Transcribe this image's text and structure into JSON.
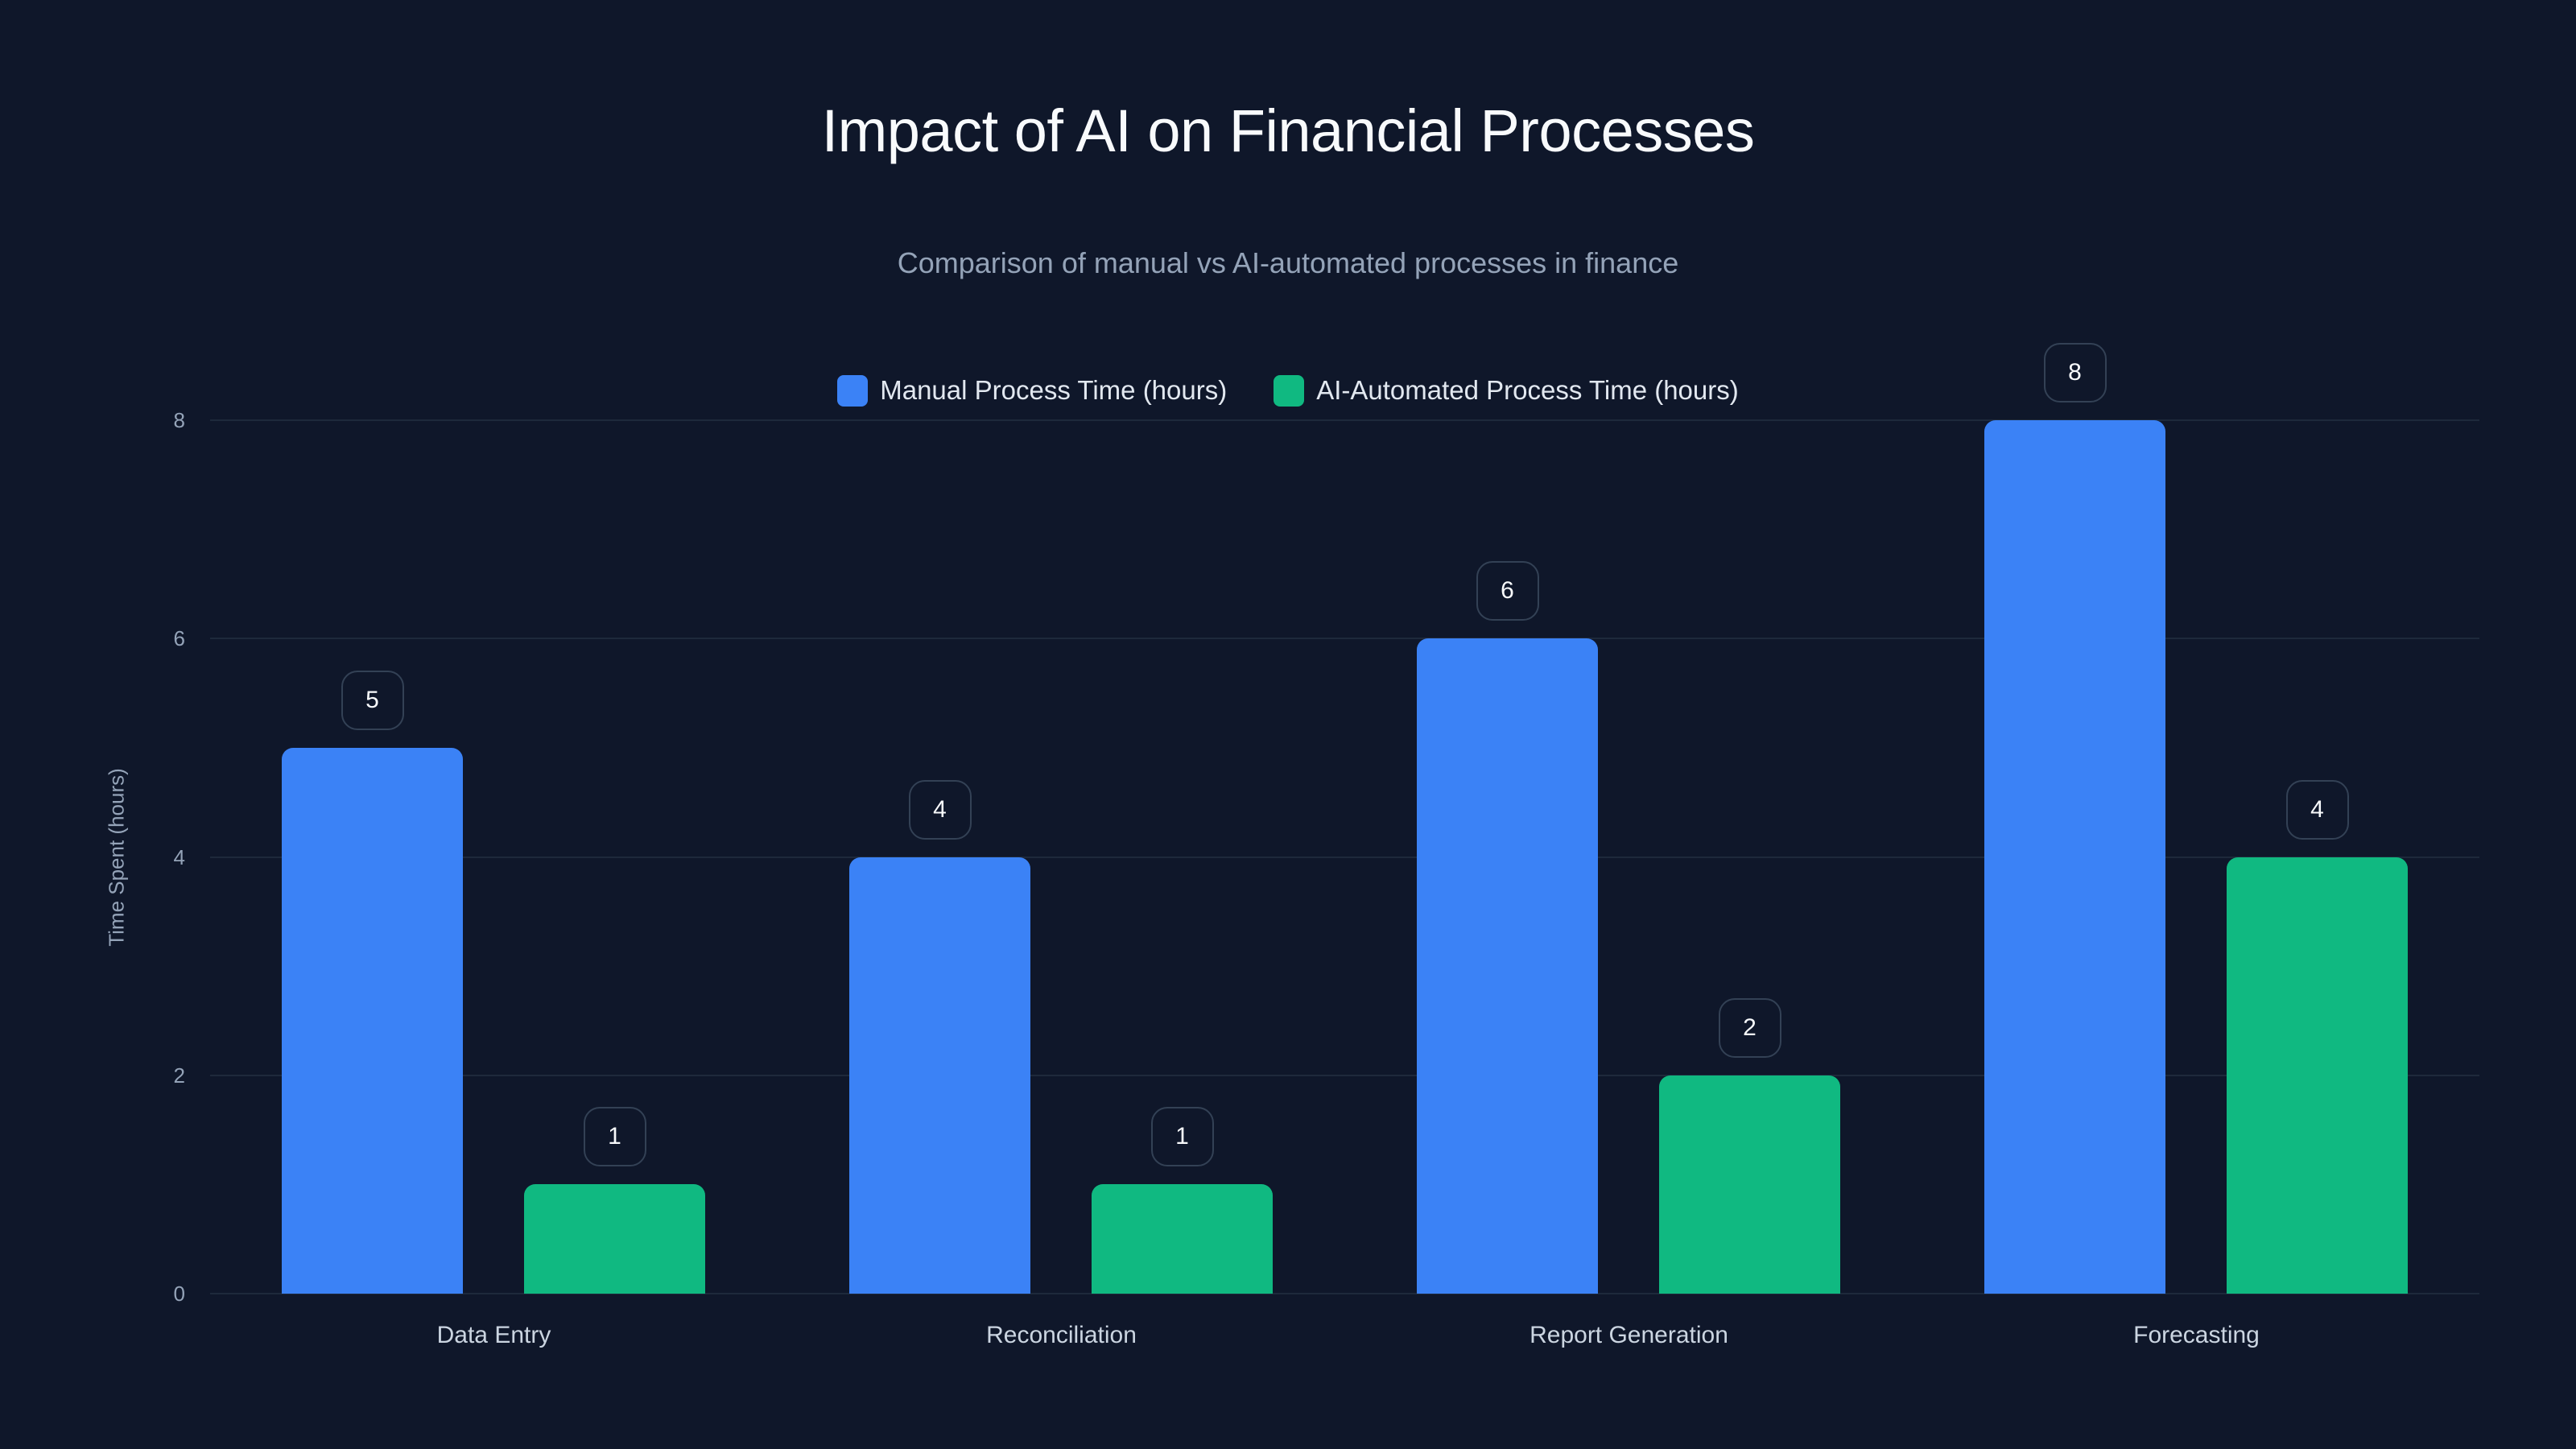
{
  "title": "Impact of AI on Financial Processes",
  "subtitle": "Comparison of manual vs AI-automated processes in finance",
  "legend": [
    {
      "label": "Manual Process Time (hours)",
      "color": "#3b82f6"
    },
    {
      "label": "AI-Automated Process Time (hours)",
      "color": "#10b981"
    }
  ],
  "yaxis": {
    "title": "Time Spent (hours)",
    "ticks": [
      "0",
      "2",
      "4",
      "6",
      "8"
    ]
  },
  "colors": {
    "background": "#0f172a",
    "grid": "#1e293b",
    "manual": "#3b82f6",
    "ai": "#10b981",
    "badge_border": "#334155"
  },
  "chart_data": {
    "type": "bar",
    "title": "Impact of AI on Financial Processes",
    "subtitle": "Comparison of manual vs AI-automated processes in finance",
    "categories": [
      "Data Entry",
      "Reconciliation",
      "Report Generation",
      "Forecasting"
    ],
    "series": [
      {
        "name": "Manual Process Time (hours)",
        "values": [
          5,
          4,
          6,
          8
        ],
        "color": "#3b82f6"
      },
      {
        "name": "AI-Automated Process Time (hours)",
        "values": [
          1,
          1,
          2,
          4
        ],
        "color": "#10b981"
      }
    ],
    "xlabel": "",
    "ylabel": "Time Spent (hours)",
    "ylim": [
      0,
      8
    ],
    "yticks": [
      0,
      2,
      4,
      6,
      8
    ],
    "grid": true,
    "legend_position": "top-center",
    "data_labels": true
  }
}
